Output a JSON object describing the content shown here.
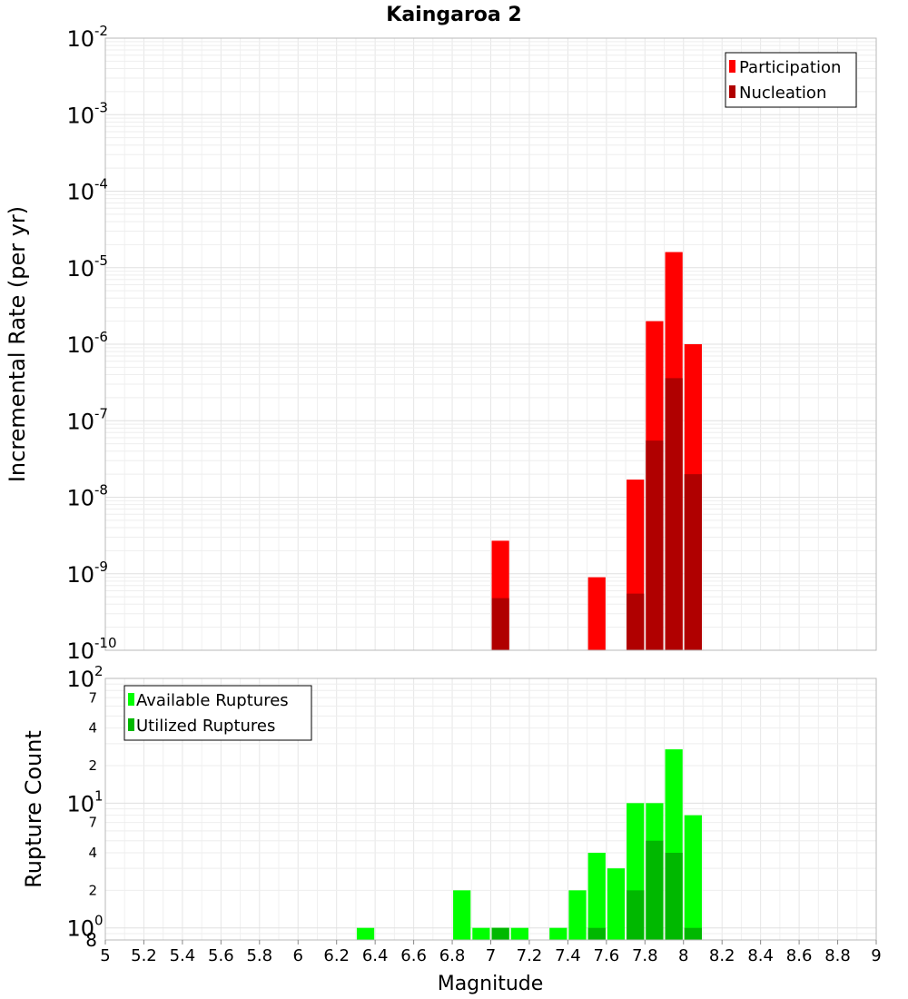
{
  "chart_data": [
    {
      "type": "bar",
      "title": "Kaingaroa 2",
      "xlabel": "Magnitude",
      "ylabel": "Incremental Rate (per yr)",
      "y_scale": "log",
      "xlim": [
        5,
        9
      ],
      "ylim": [
        1e-10,
        0.01
      ],
      "bin_width": 0.1,
      "grid": true,
      "legend_position": "top-right",
      "series": [
        {
          "name": "Participation",
          "color": "#ff0000",
          "x": [
            7.05,
            7.55,
            7.75,
            7.85,
            7.95,
            8.05
          ],
          "values": [
            2.7e-09,
            9e-10,
            1.7e-08,
            2e-06,
            1.6e-05,
            1e-06
          ]
        },
        {
          "name": "Nucleation",
          "color": "#b00000",
          "x": [
            7.05,
            7.75,
            7.85,
            7.95,
            8.05
          ],
          "values": [
            4.8e-10,
            5.5e-10,
            5.5e-08,
            3.6e-07,
            2e-08
          ]
        }
      ]
    },
    {
      "type": "bar",
      "title": "",
      "xlabel": "Magnitude",
      "ylabel": "Rupture Count",
      "y_scale": "log",
      "xlim": [
        5,
        9
      ],
      "ylim": [
        0.8,
        100
      ],
      "bin_width": 0.1,
      "grid": true,
      "legend_position": "top-left",
      "series": [
        {
          "name": "Available Ruptures",
          "color": "#00ff00",
          "x": [
            6.35,
            6.85,
            6.95,
            7.05,
            7.15,
            7.35,
            7.45,
            7.55,
            7.65,
            7.75,
            7.85,
            7.95,
            8.05
          ],
          "values": [
            1,
            2,
            1,
            1,
            1,
            1,
            2,
            4,
            3,
            10,
            10,
            27,
            8
          ]
        },
        {
          "name": "Utilized Ruptures",
          "color": "#00b800",
          "x": [
            7.05,
            7.55,
            7.75,
            7.85,
            7.95,
            8.05
          ],
          "values": [
            1,
            1,
            2,
            5,
            4,
            1
          ]
        }
      ]
    }
  ],
  "x_ticks": [
    "5",
    "5.2",
    "5.4",
    "5.6",
    "5.8",
    "6",
    "6.2",
    "6.4",
    "6.6",
    "6.8",
    "7",
    "7.2",
    "7.4",
    "7.6",
    "7.8",
    "8",
    "8.2",
    "8.4",
    "8.6",
    "8.8",
    "9"
  ],
  "top_y_ticks": [
    {
      "base": "10",
      "exp": "-10"
    },
    {
      "base": "10",
      "exp": "-9"
    },
    {
      "base": "10",
      "exp": "-8"
    },
    {
      "base": "10",
      "exp": "-7"
    },
    {
      "base": "10",
      "exp": "-6"
    },
    {
      "base": "10",
      "exp": "-5"
    },
    {
      "base": "10",
      "exp": "-4"
    },
    {
      "base": "10",
      "exp": "-3"
    },
    {
      "base": "10",
      "exp": "-2"
    }
  ],
  "bottom_y_ticks": {
    "major": [
      {
        "base": "10",
        "exp": "0"
      },
      {
        "base": "10",
        "exp": "1"
      },
      {
        "base": "10",
        "exp": "2"
      }
    ],
    "minor": [
      "8",
      "2",
      "4",
      "7",
      "2",
      "4",
      "7"
    ]
  }
}
